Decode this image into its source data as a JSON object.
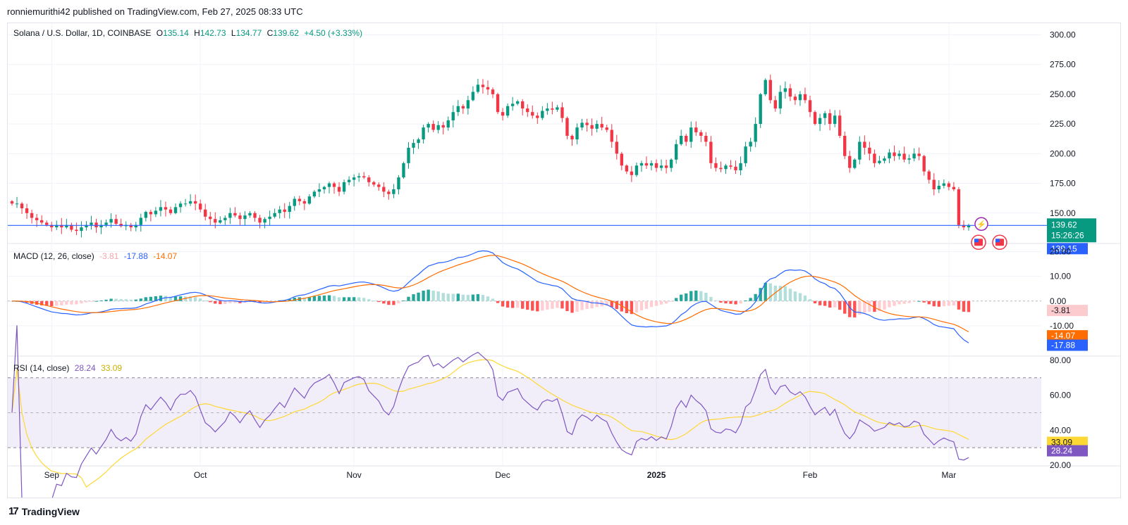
{
  "header": {
    "published": "ronniemurithi42 published on TradingView.com, Feb 27, 2025 08:33 UTC"
  },
  "legend": {
    "symbol": "Solana / U.S. Dollar, 1D, COINBASE",
    "o_label": "O",
    "o": "135.14",
    "h_label": "H",
    "h": "142.73",
    "l_label": "L",
    "l": "134.77",
    "c_label": "C",
    "c": "139.62",
    "change": "+4.50 (+3.33%)"
  },
  "macd_legend": {
    "label": "MACD (12, 26, close)",
    "hist": "-3.81",
    "macd": "-17.88",
    "signal": "-14.07"
  },
  "rsi_legend": {
    "label": "RSI (14, close)",
    "rsi": "28.24",
    "ma": "33.09"
  },
  "price_tags": {
    "last": "139.62",
    "countdown": "15:26:26",
    "low": "139.15"
  },
  "brand": {
    "name": "TradingView"
  },
  "colors": {
    "up": "#089981",
    "down": "#f23645",
    "macd": "#2962ff",
    "signal": "#ff6d00",
    "rsi": "#7e57c2",
    "rsi_ma": "#fdd835",
    "price_line": "#2962ff"
  },
  "chart_data": [
    {
      "type": "candlestick",
      "title": "Solana / U.S. Dollar, 1D, COINBASE",
      "ylim": [
        125,
        305
      ],
      "yticks": [
        "150.00",
        "175.00",
        "200.00",
        "225.00",
        "250.00",
        "275.00",
        "300.00"
      ],
      "x_ticks": [
        {
          "label": "Sep",
          "day": 8
        },
        {
          "label": "Oct",
          "day": 38
        },
        {
          "label": "Nov",
          "day": 69
        },
        {
          "label": "Dec",
          "day": 99
        },
        {
          "label": "2025",
          "day": 130
        },
        {
          "label": "Feb",
          "day": 161
        },
        {
          "label": "Mar",
          "day": 189
        }
      ],
      "closes": [
        158,
        158,
        154,
        150,
        146,
        144,
        142,
        140,
        138,
        140,
        138,
        140,
        136,
        135,
        138,
        140,
        142,
        138,
        140,
        142,
        145,
        141,
        139,
        140,
        138,
        140,
        146,
        151,
        149,
        152,
        155,
        153,
        150,
        155,
        158,
        158,
        160,
        158,
        153,
        147,
        145,
        142,
        144,
        146,
        150,
        148,
        145,
        148,
        150,
        146,
        142,
        145,
        147,
        150,
        153,
        151,
        156,
        162,
        160,
        158,
        164,
        168,
        170,
        172,
        175,
        172,
        168,
        176,
        178,
        180,
        181,
        180,
        176,
        174,
        172,
        168,
        166,
        170,
        180,
        192,
        205,
        209,
        212,
        222,
        225,
        220,
        224,
        222,
        228,
        235,
        240,
        238,
        245,
        252,
        258,
        256,
        254,
        250,
        235,
        232,
        240,
        242,
        244,
        238,
        235,
        232,
        230,
        236,
        238,
        237,
        239,
        230,
        215,
        212,
        222,
        226,
        224,
        221,
        225,
        222,
        220,
        210,
        200,
        190,
        185,
        182,
        190,
        192,
        190,
        192,
        188,
        190,
        188,
        195,
        208,
        215,
        210,
        222,
        218,
        215,
        210,
        192,
        188,
        187,
        190,
        189,
        186,
        192,
        206,
        210,
        225,
        250,
        262,
        245,
        238,
        252,
        255,
        248,
        245,
        250,
        245,
        235,
        225,
        230,
        234,
        225,
        232,
        215,
        198,
        188,
        195,
        210,
        205,
        200,
        192,
        194,
        196,
        201,
        198,
        200,
        195,
        196,
        200,
        198,
        185,
        178,
        170,
        173,
        175,
        172,
        170,
        140,
        138,
        139.62
      ]
    },
    {
      "type": "bar+line",
      "title": "MACD (12, 26, close)",
      "ylim": [
        -22,
        23
      ],
      "yticks": [
        "-10.00",
        "0.00",
        "10.00",
        "20.00"
      ],
      "series": [
        {
          "name": "MACD",
          "values_source": "closes"
        },
        {
          "name": "Signal",
          "values_source": "closes"
        },
        {
          "name": "Histogram",
          "last": -3.81
        }
      ],
      "last_values": {
        "histogram": -3.81,
        "macd": -17.88,
        "signal": -14.07
      }
    },
    {
      "type": "line",
      "title": "RSI (14, close)",
      "ylim": [
        20,
        82
      ],
      "yticks": [
        "20.00",
        "40.00",
        "60.00",
        "80.00"
      ],
      "bands": [
        30,
        50,
        70
      ],
      "last_values": {
        "rsi": 28.24,
        "ma": 33.09
      }
    }
  ]
}
